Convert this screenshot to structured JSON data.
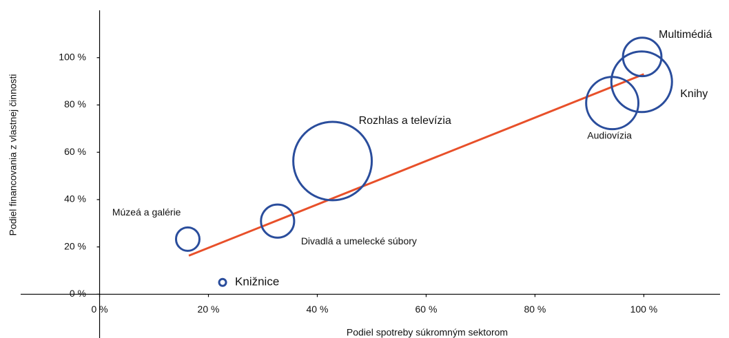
{
  "chart_data": {
    "type": "bubble",
    "x_label": "Podiel spotreby súkromným sektorom",
    "y_label": "Podiel financovania z vlastnej činnosti",
    "color": "#2a4d9c",
    "labels": [
      "Knižnice",
      "Múzeá a galérie",
      "Divadlá a umelecké súbory",
      "Rozhlas a televízia",
      "Audiovízia",
      "Knihy",
      "Multimédiá"
    ],
    "x": [
      22.6,
      16.2,
      32.7,
      42.8,
      94.2,
      99.6,
      99.7
    ],
    "y": [
      5,
      23.3,
      30.9,
      56.3,
      80.8,
      89.8,
      100.3
    ],
    "sizes": [
      2.5,
      29,
      58,
      325,
      144,
      194,
      78
    ],
    "trend_line": {
      "x": [
        16.4,
        100
      ],
      "y": [
        16.3,
        93
      ],
      "color": "#e8502a"
    },
    "xlim": [
      -14.5,
      114
    ],
    "ylim": [
      -18.5,
      120
    ],
    "xticks": [
      {
        "value": 0,
        "label": "0 %"
      },
      {
        "value": 20,
        "label": "20 %"
      },
      {
        "value": 40,
        "label": "40 %"
      },
      {
        "value": 60,
        "label": "60 %"
      },
      {
        "value": 80,
        "label": "80 %"
      },
      {
        "value": 100,
        "label": "100 %"
      }
    ],
    "yticks": [
      {
        "value": 0,
        "label": "0 %"
      },
      {
        "value": 20,
        "label": "20 %"
      },
      {
        "value": 40,
        "label": "40 %"
      },
      {
        "value": 60,
        "label": "60 %"
      },
      {
        "value": 80,
        "label": "80 %"
      },
      {
        "value": 100,
        "label": "100 %"
      }
    ],
    "grid": false
  }
}
